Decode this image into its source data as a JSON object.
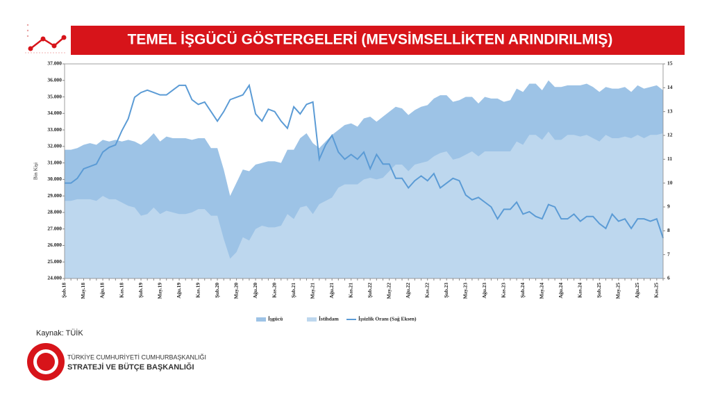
{
  "header": {
    "title": "TEMEL İŞGÜCÜ GÖSTERGELERİ (MEVSİMSELLİKTEN ARINDIRILMIŞ)"
  },
  "chart_data": {
    "type": "area",
    "ylabel": "Bin Kişi",
    "categories": [
      "Şub.18",
      null,
      null,
      "May.18",
      null,
      null,
      "Ağu.18",
      null,
      null,
      "Kas.18",
      null,
      null,
      "Şub.19",
      null,
      null,
      "May.19",
      null,
      null,
      "Ağu.19",
      null,
      null,
      "Kas.19",
      null,
      null,
      "Şub.20",
      null,
      null,
      "May.20",
      null,
      null,
      "Ağu.20",
      null,
      null,
      "Kas.20",
      null,
      null,
      "Şub.21",
      null,
      null,
      "May.21",
      null,
      null,
      "Ağu.21",
      null,
      null,
      "Kas.21",
      null,
      null,
      "Şub.22",
      null,
      null,
      "May.22",
      null,
      null,
      "Ağu.22",
      null,
      null,
      "Kas.22",
      null,
      null,
      "Şub.23",
      null,
      null,
      "May.23",
      null,
      null,
      "Ağu.23",
      null,
      null,
      "Kas.23",
      null,
      null,
      "Şub.24",
      null,
      null,
      "May.24",
      null,
      null,
      "Ağu.24",
      null,
      null,
      "Kas.24",
      null,
      null,
      "Şub.25",
      null,
      null,
      "May.25",
      null,
      null,
      "Ağu.25",
      null,
      null,
      "Kas.25",
      null
    ],
    "series": [
      {
        "name": "İşgücü",
        "type": "area",
        "color": "#9dc3e6",
        "values": [
          31800,
          31800,
          31900,
          32100,
          32200,
          32100,
          32400,
          32300,
          32400,
          32300,
          32400,
          32300,
          32100,
          32400,
          32800,
          32300,
          32600,
          32500,
          32500,
          32500,
          32400,
          32500,
          32500,
          31900,
          31900,
          30600,
          29000,
          29800,
          30600,
          30500,
          30900,
          31000,
          31100,
          31100,
          31000,
          31800,
          31800,
          32500,
          32800,
          32200,
          31900,
          32300,
          32700,
          33000,
          33300,
          33400,
          33200,
          33700,
          33800,
          33500,
          33800,
          34100,
          34400,
          34300,
          33900,
          34200,
          34400,
          34500,
          34900,
          35100,
          35100,
          34700,
          34800,
          35000,
          35000,
          34600,
          35000,
          34900,
          34900,
          34700,
          34800,
          35500,
          35300,
          35800,
          35800,
          35400,
          36000,
          35600,
          35600,
          35700,
          35700,
          35700,
          35800,
          35600,
          35300,
          35600,
          35500,
          35500,
          35600,
          35300,
          35700,
          35500,
          35600,
          35700,
          35400
        ]
      },
      {
        "name": "İstihdam",
        "type": "area",
        "color": "#bdd7ee",
        "values": [
          28700,
          28700,
          28800,
          28800,
          28800,
          28700,
          29000,
          28800,
          28800,
          28600,
          28400,
          28300,
          27800,
          27900,
          28300,
          27900,
          28100,
          28000,
          27900,
          27900,
          28000,
          28200,
          28200,
          27800,
          27800,
          26400,
          25200,
          25600,
          26500,
          26300,
          27000,
          27200,
          27100,
          27100,
          27200,
          27900,
          27600,
          28300,
          28400,
          27900,
          28500,
          28700,
          28900,
          29500,
          29700,
          29700,
          29700,
          30000,
          30100,
          30000,
          30100,
          30500,
          30900,
          30900,
          30500,
          30900,
          31000,
          31100,
          31400,
          31600,
          31700,
          31200,
          31300,
          31500,
          31700,
          31400,
          31700,
          31700,
          31700,
          31700,
          31700,
          32300,
          32100,
          32700,
          32700,
          32400,
          32900,
          32400,
          32400,
          32700,
          32700,
          32600,
          32700,
          32500,
          32300,
          32700,
          32500,
          32500,
          32600,
          32500,
          32700,
          32500,
          32700,
          32700,
          32800
        ]
      },
      {
        "name": "İşsizlik Oranı (Sağ Eksen)",
        "type": "line",
        "axis": "y2",
        "color": "#5b9bd5",
        "values": [
          10.0,
          10.0,
          10.2,
          10.6,
          10.7,
          10.8,
          11.3,
          11.5,
          11.6,
          12.2,
          12.7,
          13.6,
          13.8,
          13.9,
          13.8,
          13.7,
          13.7,
          13.9,
          14.1,
          14.1,
          13.5,
          13.3,
          13.4,
          13.0,
          12.6,
          13.0,
          13.5,
          13.6,
          13.7,
          14.1,
          12.9,
          12.6,
          13.1,
          13.0,
          12.6,
          12.3,
          13.2,
          12.9,
          13.3,
          13.4,
          11.0,
          11.6,
          12.0,
          11.3,
          11.0,
          11.2,
          11.0,
          11.3,
          10.6,
          11.2,
          10.8,
          10.8,
          10.2,
          10.2,
          9.8,
          10.1,
          10.3,
          10.1,
          10.4,
          9.8,
          10.0,
          10.2,
          10.1,
          9.5,
          9.3,
          9.4,
          9.2,
          9.0,
          8.5,
          8.9,
          8.9,
          9.2,
          8.7,
          8.8,
          8.6,
          8.5,
          9.1,
          9.0,
          8.5,
          8.5,
          8.7,
          8.4,
          8.6,
          8.6,
          8.3,
          8.1,
          8.7,
          8.4,
          8.5,
          8.1,
          8.5,
          8.5,
          8.4,
          8.5,
          7.7
        ]
      }
    ],
    "ylim": [
      24000,
      37000
    ],
    "yticks": [
      {
        "value": 24000,
        "label": "24.000"
      },
      {
        "value": 25000,
        "label": "25.000"
      },
      {
        "value": 26000,
        "label": "26.000"
      },
      {
        "value": 27000,
        "label": "27.000"
      },
      {
        "value": 28000,
        "label": "28.000"
      },
      {
        "value": 29000,
        "label": "29.000"
      },
      {
        "value": 30000,
        "label": "30.000"
      },
      {
        "value": 31000,
        "label": "31.000"
      },
      {
        "value": 32000,
        "label": "32.000"
      },
      {
        "value": 33000,
        "label": "33.000"
      },
      {
        "value": 34000,
        "label": "34.000"
      },
      {
        "value": 35000,
        "label": "35.000"
      },
      {
        "value": 36000,
        "label": "36.000"
      },
      {
        "value": 37000,
        "label": "37.000"
      }
    ],
    "y2lim": [
      6,
      15
    ],
    "y2ticks": [
      6,
      7,
      8,
      9,
      10,
      11,
      12,
      13,
      14,
      15
    ],
    "legend": "bottom"
  },
  "footer": {
    "source": "Kaynak: TÜİK",
    "org_line1": "TÜRKİYE CUMHURİYETİ CUMHURBAŞKANLIĞI",
    "org_line2": "STRATEJİ VE BÜTÇE BAŞKANLIĞI"
  }
}
